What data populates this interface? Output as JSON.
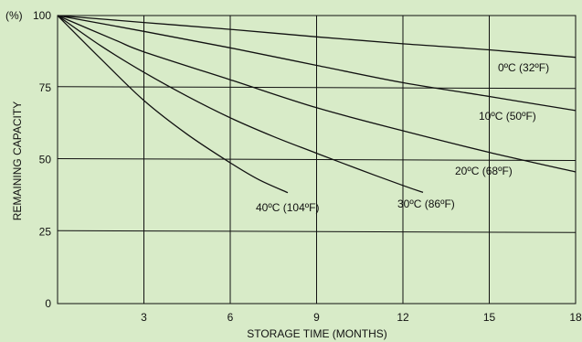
{
  "colors": {
    "background": "#d8ebc8",
    "line": "#111111",
    "grid": "#111111"
  },
  "chart_data": {
    "type": "line",
    "xlabel": "STORAGE TIME (MONTHS)",
    "ylabel": "REMAINING CAPACITY",
    "y_unit_label": "(%)",
    "xlim": [
      0,
      18
    ],
    "ylim": [
      0,
      100
    ],
    "x_ticks": [
      3,
      6,
      9,
      12,
      15,
      18
    ],
    "y_ticks": [
      0,
      25,
      50,
      75,
      100
    ],
    "grid": true,
    "series": [
      {
        "name": "0ºC (32ºF)",
        "x": [
          0,
          3,
          6,
          9,
          12,
          15,
          18
        ],
        "y": [
          100,
          97.6,
          95.2,
          92.6,
          90.2,
          88.1,
          85.5
        ]
      },
      {
        "name": "10ºC (50ºF)",
        "x": [
          0,
          3,
          6,
          9,
          12,
          15,
          18
        ],
        "y": [
          100,
          94.5,
          88.8,
          82.7,
          76.7,
          71.9,
          67.0
        ]
      },
      {
        "name": "20ºC (68ºF)",
        "x": [
          0,
          2,
          3,
          6,
          9,
          12,
          15,
          18
        ],
        "y": [
          100,
          91.5,
          87.4,
          77.7,
          68.0,
          60.0,
          52.5,
          45.7
        ]
      },
      {
        "name": "30ºC (86ºF)",
        "x": [
          0,
          1.5,
          3,
          4.5,
          6,
          7.5,
          9,
          10.5,
          12,
          12.7
        ],
        "y": [
          100,
          89.5,
          80.3,
          72.0,
          64.5,
          58.0,
          52.2,
          46.5,
          41.0,
          38.6
        ]
      },
      {
        "name": "40ºC (104ºF)",
        "x": [
          0,
          1.5,
          3,
          4.5,
          6,
          7,
          8
        ],
        "y": [
          100,
          85.0,
          70.5,
          58.8,
          48.9,
          43.0,
          38.5
        ]
      }
    ]
  }
}
